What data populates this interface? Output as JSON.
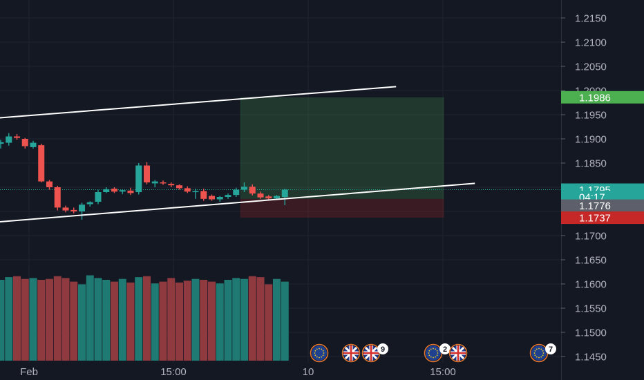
{
  "chart_data": {
    "type": "candlestick",
    "y_axis": {
      "ticks": [
        "1.2150",
        "1.2100",
        "1.2050",
        "1.2000",
        "1.1950",
        "1.1900",
        "1.1850",
        "1.1800",
        "1.1750",
        "1.1700",
        "1.1650",
        "1.1600",
        "1.1550",
        "1.1500",
        "1.1450"
      ],
      "range": [
        1.1435,
        1.2185
      ]
    },
    "x_axis": {
      "ticks": [
        "Feb",
        "15:00",
        "10",
        "15:00"
      ]
    },
    "grid": true,
    "candles": [
      {
        "o": 1.189,
        "h": 1.1898,
        "l": 1.188,
        "c": 1.1893
      },
      {
        "o": 1.1892,
        "h": 1.1912,
        "l": 1.1886,
        "c": 1.1905
      },
      {
        "o": 1.1905,
        "h": 1.191,
        "l": 1.1898,
        "c": 1.1902
      },
      {
        "o": 1.19,
        "h": 1.1902,
        "l": 1.188,
        "c": 1.1885
      },
      {
        "o": 1.1883,
        "h": 1.1896,
        "l": 1.188,
        "c": 1.1892
      },
      {
        "o": 1.1887,
        "h": 1.189,
        "l": 1.181,
        "c": 1.1812
      },
      {
        "o": 1.1812,
        "h": 1.1815,
        "l": 1.1795,
        "c": 1.18
      },
      {
        "o": 1.18,
        "h": 1.1803,
        "l": 1.1752,
        "c": 1.1758
      },
      {
        "o": 1.1758,
        "h": 1.1762,
        "l": 1.1748,
        "c": 1.1752
      },
      {
        "o": 1.1753,
        "h": 1.1758,
        "l": 1.1746,
        "c": 1.175
      },
      {
        "o": 1.175,
        "h": 1.1768,
        "l": 1.1733,
        "c": 1.1764
      },
      {
        "o": 1.1765,
        "h": 1.1771,
        "l": 1.176,
        "c": 1.1769
      },
      {
        "o": 1.177,
        "h": 1.1795,
        "l": 1.1765,
        "c": 1.179
      },
      {
        "o": 1.179,
        "h": 1.18,
        "l": 1.1788,
        "c": 1.1796
      },
      {
        "o": 1.1797,
        "h": 1.18,
        "l": 1.1788,
        "c": 1.1791
      },
      {
        "o": 1.1791,
        "h": 1.1796,
        "l": 1.1786,
        "c": 1.1794
      },
      {
        "o": 1.1793,
        "h": 1.1799,
        "l": 1.1784,
        "c": 1.1788
      },
      {
        "o": 1.179,
        "h": 1.185,
        "l": 1.1785,
        "c": 1.1845
      },
      {
        "o": 1.1845,
        "h": 1.1852,
        "l": 1.1806,
        "c": 1.181
      },
      {
        "o": 1.1808,
        "h": 1.1815,
        "l": 1.18,
        "c": 1.1812
      },
      {
        "o": 1.181,
        "h": 1.1814,
        "l": 1.1805,
        "c": 1.1808
      },
      {
        "o": 1.1807,
        "h": 1.181,
        "l": 1.18,
        "c": 1.1804
      },
      {
        "o": 1.1804,
        "h": 1.1806,
        "l": 1.1795,
        "c": 1.1798
      },
      {
        "o": 1.1798,
        "h": 1.1802,
        "l": 1.1788,
        "c": 1.1791
      },
      {
        "o": 1.179,
        "h": 1.1797,
        "l": 1.1776,
        "c": 1.1792
      },
      {
        "o": 1.1792,
        "h": 1.1797,
        "l": 1.1772,
        "c": 1.1776
      },
      {
        "o": 1.1782,
        "h": 1.1785,
        "l": 1.1772,
        "c": 1.1775
      },
      {
        "o": 1.1775,
        "h": 1.1782,
        "l": 1.177,
        "c": 1.178
      },
      {
        "o": 1.178,
        "h": 1.1787,
        "l": 1.1776,
        "c": 1.1784
      },
      {
        "o": 1.1784,
        "h": 1.1799,
        "l": 1.178,
        "c": 1.1795
      },
      {
        "o": 1.1795,
        "h": 1.181,
        "l": 1.179,
        "c": 1.1801
      },
      {
        "o": 1.1801,
        "h": 1.1806,
        "l": 1.1783,
        "c": 1.1787
      },
      {
        "o": 1.1787,
        "h": 1.1791,
        "l": 1.1776,
        "c": 1.1779
      },
      {
        "o": 1.1781,
        "h": 1.1784,
        "l": 1.1774,
        "c": 1.1777
      },
      {
        "o": 1.1777,
        "h": 1.1784,
        "l": 1.1774,
        "c": 1.1782
      },
      {
        "o": 1.178,
        "h": 1.1797,
        "l": 1.1763,
        "c": 1.1795
      }
    ],
    "volume_relative": [
      0.9,
      0.93,
      0.94,
      0.91,
      0.92,
      0.9,
      0.91,
      0.94,
      0.92,
      0.88,
      0.85,
      0.95,
      0.92,
      0.9,
      0.88,
      0.91,
      0.87,
      0.93,
      0.94,
      0.86,
      0.88,
      0.92,
      0.87,
      0.89,
      0.91,
      0.9,
      0.88,
      0.86,
      0.9,
      0.92,
      0.91,
      0.94,
      0.93,
      0.85,
      0.91,
      0.88
    ],
    "trendlines": [
      {
        "from": {
          "bar": -0.5,
          "price": 1.1943
        },
        "to": {
          "bar": 48.7,
          "price": 1.2008
        }
      },
      {
        "from": {
          "bar": -0.5,
          "price": 1.1728
        },
        "to": {
          "bar": 58.4,
          "price": 1.1808
        }
      }
    ],
    "position": {
      "start_bar": 29.5,
      "end_bar": 54.6,
      "entry": 1.1776,
      "target": 1.1986,
      "stop": 1.1737
    },
    "price_tags": [
      {
        "label": "1.1986",
        "price": 1.1986,
        "color": "#4caf50"
      },
      {
        "label": "1.1795",
        "price": 1.1795,
        "color": "#26a69a"
      },
      {
        "label": "04:17",
        "price": 1.178,
        "color": "#26a69a"
      },
      {
        "label": "1.1776",
        "price": 1.1762,
        "color": "#5d606b"
      },
      {
        "label": "1.1737",
        "price": 1.1737,
        "color": "#c62828"
      }
    ],
    "events": [
      {
        "flag": "eu",
        "badge": ""
      },
      {
        "flag": "uk",
        "badge": ""
      },
      {
        "flag": "uk",
        "badge": "9"
      },
      {
        "flag": "eu",
        "badge": "2"
      },
      {
        "flag": "uk",
        "badge": ""
      },
      {
        "flag": "eu",
        "badge": "7"
      }
    ]
  },
  "colors": {
    "up": "#26a69a",
    "down": "#ef5350",
    "vol_up": "#1e7a72",
    "vol_down": "#8f3a3f",
    "grid": "#1f2330",
    "text": "#b2b5be",
    "bg": "#141823",
    "line": "#ffffff"
  }
}
